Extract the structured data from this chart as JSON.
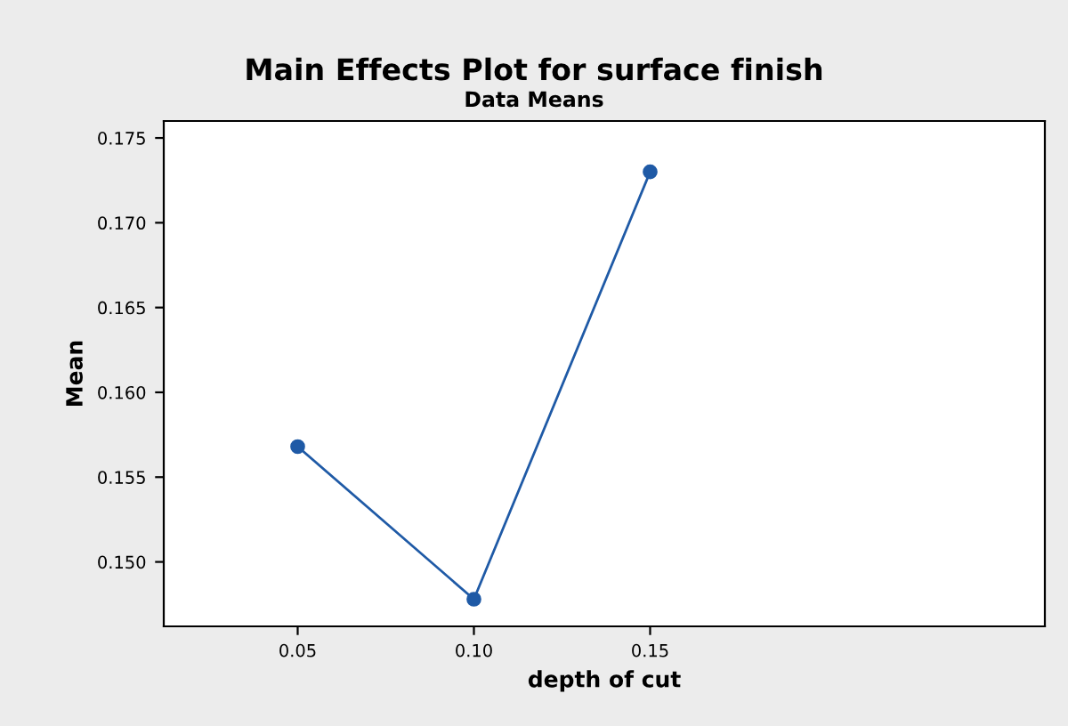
{
  "chart_data": {
    "type": "line",
    "title": "Main Effects Plot for surface finish",
    "subtitle": "Data Means",
    "xlabel": "depth of cut",
    "ylabel": "Mean",
    "x": [
      0.05,
      0.1,
      0.15
    ],
    "series": [
      {
        "color": "#1f5aa6",
        "values": [
          0.1568,
          0.1478,
          0.173
        ]
      }
    ],
    "xlim": [
      0.012,
      0.262
    ],
    "xticks": [
      {
        "value": 0.05,
        "label": "0.05"
      },
      {
        "value": 0.1,
        "label": "0.10"
      },
      {
        "value": 0.15,
        "label": "0.15"
      }
    ],
    "ylim": [
      0.1462,
      0.176
    ],
    "yticks": [
      {
        "value": 0.15,
        "label": "0.150"
      },
      {
        "value": 0.155,
        "label": "0.155"
      },
      {
        "value": 0.16,
        "label": "0.160"
      },
      {
        "value": 0.165,
        "label": "0.165"
      },
      {
        "value": 0.17,
        "label": "0.170"
      },
      {
        "value": 0.175,
        "label": "0.175"
      }
    ],
    "marker": "circle",
    "line_style": "solid",
    "grid": false,
    "legend": false
  }
}
